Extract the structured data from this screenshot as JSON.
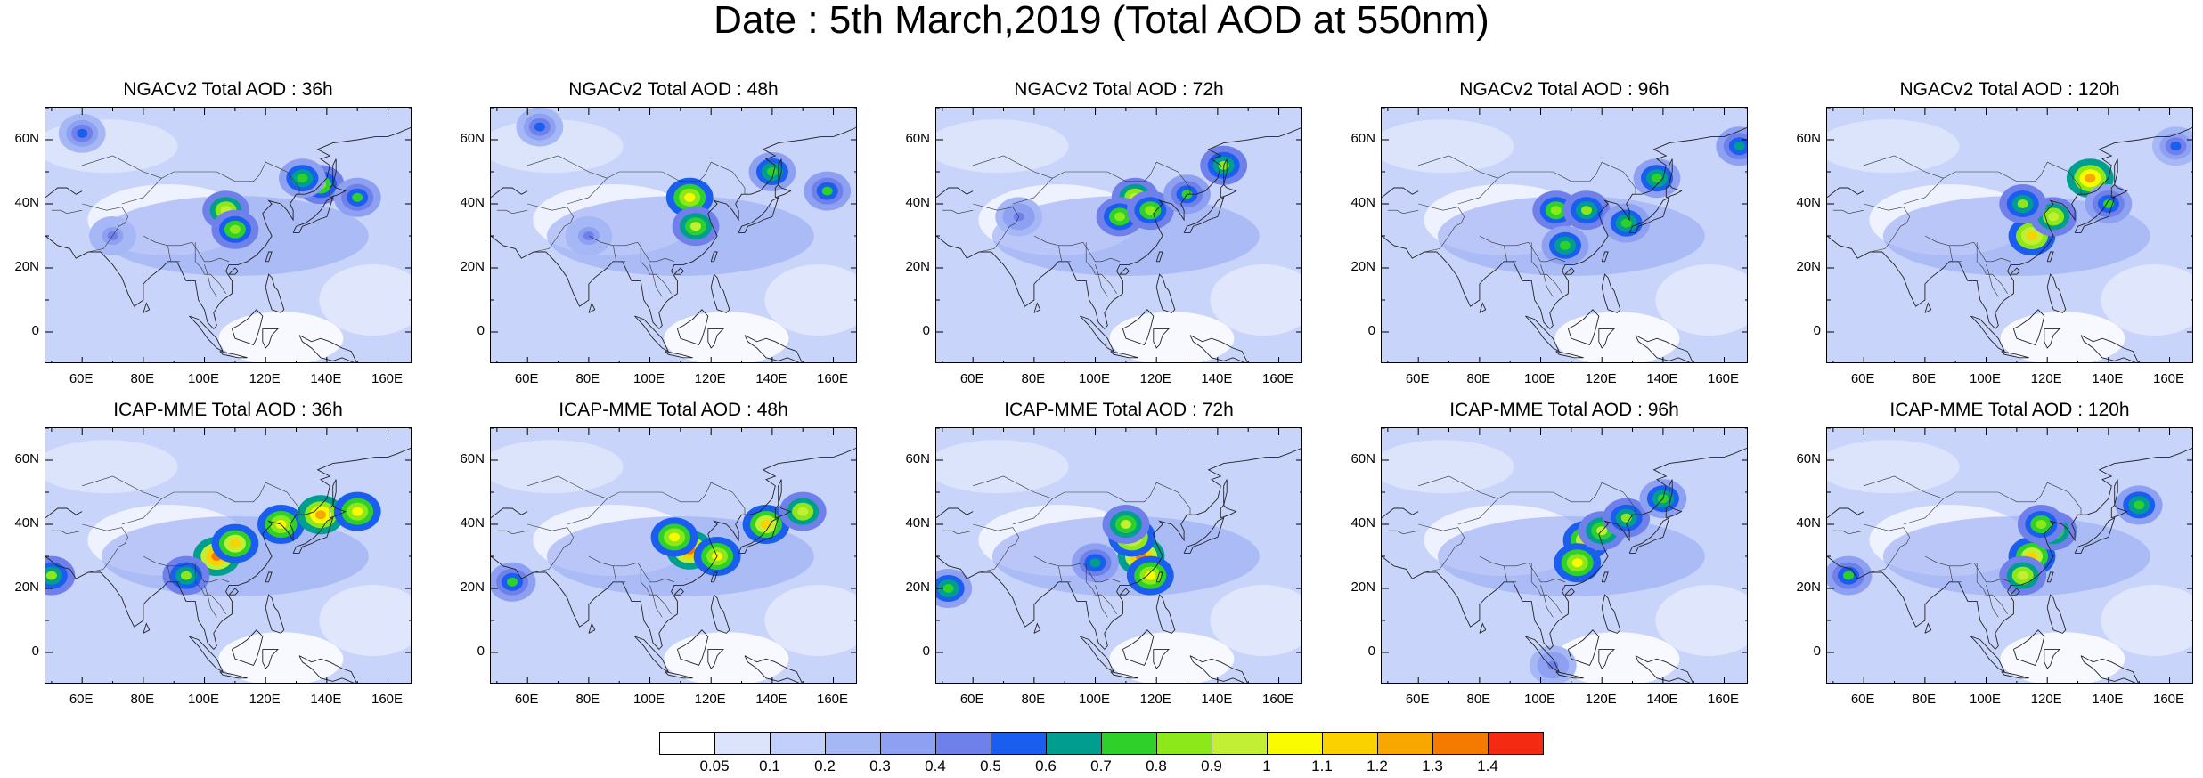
{
  "title": "Date : 5th March,2019 (Total AOD at 550nm)",
  "axes": {
    "x_ticks": [
      "60E",
      "80E",
      "100E",
      "120E",
      "140E",
      "160E"
    ],
    "x_values": [
      60,
      80,
      100,
      120,
      140,
      160
    ],
    "y_ticks": [
      "60N",
      "40N",
      "20N",
      "0"
    ],
    "y_values": [
      60,
      40,
      20,
      0
    ],
    "lon_range": [
      48,
      168
    ],
    "lat_range": [
      -10,
      70
    ]
  },
  "panels": [
    {
      "title": "NGACv2 Total AOD : 36h",
      "hotspots": [
        [
          107,
          38,
          0.95
        ],
        [
          110,
          32,
          0.85
        ],
        [
          138,
          46,
          0.85
        ],
        [
          132,
          48,
          0.75
        ],
        [
          150,
          42,
          0.7
        ],
        [
          60,
          62,
          0.5
        ],
        [
          70,
          30,
          0.4
        ]
      ]
    },
    {
      "title": "NGACv2 Total AOD : 48h",
      "hotspots": [
        [
          113,
          42,
          1.05
        ],
        [
          115,
          33,
          0.9
        ],
        [
          140,
          50,
          0.75
        ],
        [
          158,
          44,
          0.7
        ],
        [
          64,
          64,
          0.55
        ],
        [
          80,
          30,
          0.4
        ]
      ]
    },
    {
      "title": "NGACv2 Total AOD : 72h",
      "hotspots": [
        [
          113,
          42,
          0.95
        ],
        [
          108,
          36,
          0.85
        ],
        [
          118,
          38,
          0.85
        ],
        [
          142,
          52,
          0.8
        ],
        [
          130,
          43,
          0.7
        ],
        [
          75,
          36,
          0.45
        ]
      ]
    },
    {
      "title": "NGACv2 Total AOD : 96h",
      "hotspots": [
        [
          105,
          38,
          0.85
        ],
        [
          108,
          27,
          0.75
        ],
        [
          115,
          38,
          0.8
        ],
        [
          128,
          34,
          0.75
        ],
        [
          138,
          48,
          0.75
        ],
        [
          165,
          58,
          0.6
        ]
      ]
    },
    {
      "title": "NGACv2 Total AOD : 120h",
      "hotspots": [
        [
          134,
          48,
          1.25
        ],
        [
          115,
          30,
          1.15
        ],
        [
          122,
          36,
          0.95
        ],
        [
          112,
          40,
          0.8
        ],
        [
          140,
          40,
          0.7
        ],
        [
          162,
          58,
          0.55
        ]
      ]
    },
    {
      "title": "ICAP-MME Total AOD : 36h",
      "hotspots": [
        [
          104,
          30,
          1.3
        ],
        [
          110,
          34,
          1.1
        ],
        [
          125,
          40,
          1.0
        ],
        [
          138,
          43,
          1.2
        ],
        [
          150,
          44,
          1.05
        ],
        [
          94,
          24,
          0.8
        ],
        [
          50,
          24,
          0.8
        ]
      ]
    },
    {
      "title": "ICAP-MME Total AOD : 48h",
      "hotspots": [
        [
          113,
          32,
          1.35
        ],
        [
          108,
          36,
          1.05
        ],
        [
          122,
          30,
          1.0
        ],
        [
          138,
          40,
          1.1
        ],
        [
          150,
          44,
          0.95
        ],
        [
          55,
          22,
          0.7
        ]
      ]
    },
    {
      "title": "ICAP-MME Total AOD : 72h",
      "hotspots": [
        [
          115,
          30,
          1.35
        ],
        [
          112,
          36,
          1.15
        ],
        [
          118,
          24,
          1.0
        ],
        [
          110,
          40,
          0.9
        ],
        [
          52,
          20,
          0.75
        ],
        [
          100,
          28,
          0.6
        ]
      ]
    },
    {
      "title": "ICAP-MME Total AOD : 96h",
      "hotspots": [
        [
          115,
          35,
          1.1
        ],
        [
          112,
          28,
          1.0
        ],
        [
          120,
          38,
          0.9
        ],
        [
          128,
          42,
          0.8
        ],
        [
          140,
          48,
          0.75
        ],
        [
          104,
          -4,
          0.45
        ]
      ]
    },
    {
      "title": "ICAP-MME Total AOD : 120h",
      "hotspots": [
        [
          115,
          30,
          1.1
        ],
        [
          112,
          24,
          0.95
        ],
        [
          122,
          38,
          0.9
        ],
        [
          118,
          40,
          0.85
        ],
        [
          150,
          46,
          0.75
        ],
        [
          55,
          24,
          0.7
        ]
      ]
    }
  ],
  "colorbar": {
    "labels": [
      "0.05",
      "0.1",
      "0.2",
      "0.3",
      "0.4",
      "0.5",
      "0.6",
      "0.7",
      "0.8",
      "0.9",
      "1",
      "1.1",
      "1.2",
      "1.3",
      "1.4"
    ],
    "colors": [
      "#ffffff",
      "#dce4fb",
      "#c2cffa",
      "#a6b7f6",
      "#8ea0f1",
      "#6f80eb",
      "#1a5ef0",
      "#009e8e",
      "#2dd12a",
      "#8de81a",
      "#c2ef34",
      "#fbfb00",
      "#fad200",
      "#f8a600",
      "#f47a00",
      "#f42a12"
    ]
  }
}
